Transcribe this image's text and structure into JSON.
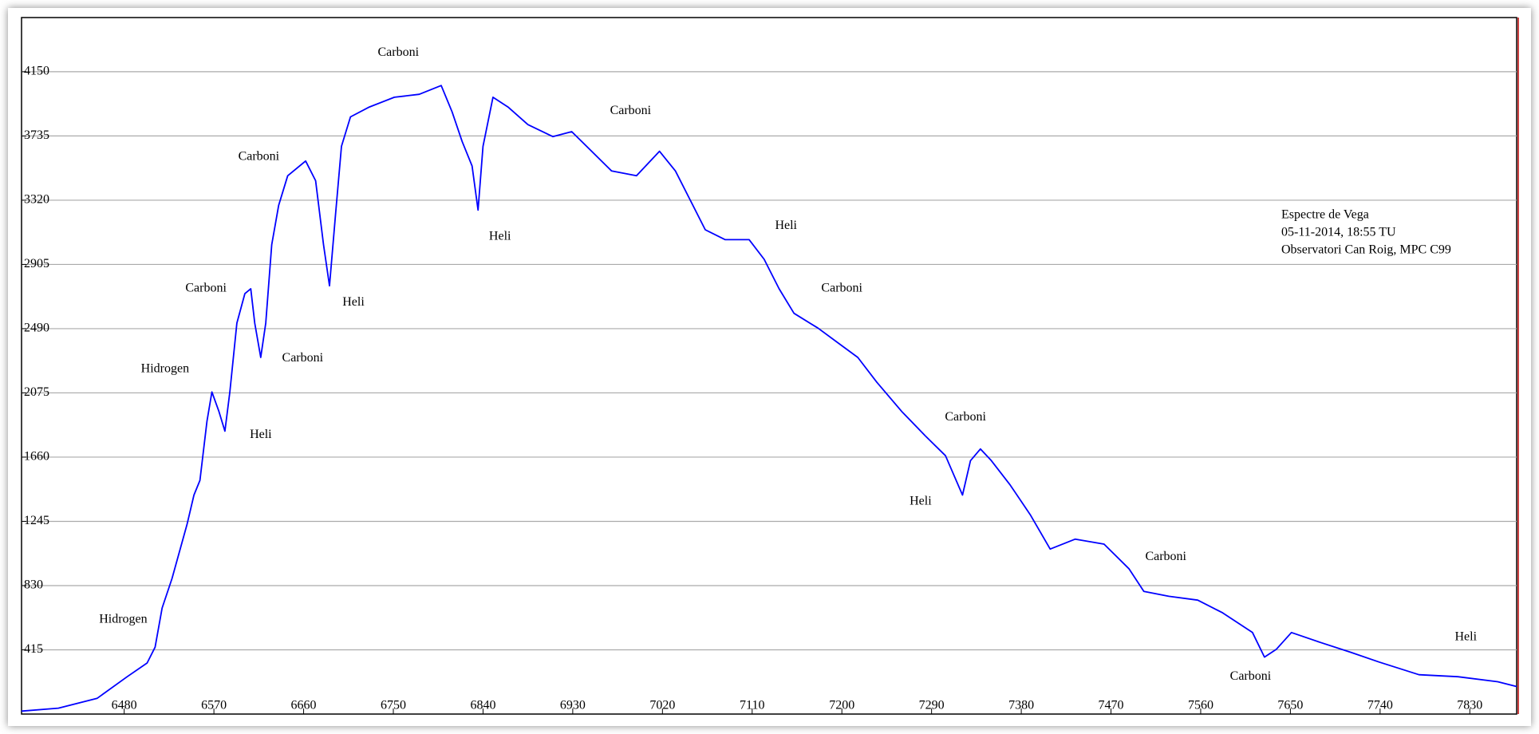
{
  "chart_data": {
    "type": "line",
    "x": [
      6377,
      6414,
      6453,
      6483,
      6503,
      6511,
      6518,
      6528,
      6543,
      6550,
      6556,
      6563,
      6568,
      6575,
      6581,
      6586,
      6593,
      6601,
      6607,
      6611,
      6617,
      6622,
      6628,
      6635,
      6644,
      6662,
      6672,
      6680,
      6686,
      6692,
      6698,
      6707,
      6726,
      6751,
      6776,
      6798,
      6809,
      6819,
      6829,
      6835,
      6840,
      6850,
      6865,
      6885,
      6910,
      6929,
      6949,
      6969,
      6994,
      7017,
      7033,
      7048,
      7063,
      7083,
      7107,
      7122,
      7137,
      7152,
      7176,
      7196,
      7216,
      7235,
      7260,
      7284,
      7304,
      7321,
      7329,
      7339,
      7350,
      7369,
      7389,
      7409,
      7434,
      7463,
      7488,
      7503,
      7528,
      7557,
      7582,
      7612,
      7624,
      7636,
      7651,
      7680,
      7710,
      7739,
      7779,
      7818,
      7858,
      7877
    ],
    "values": [
      19,
      38,
      102,
      241,
      330,
      432,
      685,
      876,
      1225,
      1415,
      1510,
      1891,
      2081,
      1955,
      1828,
      2081,
      2526,
      2716,
      2748,
      2526,
      2304,
      2526,
      3033,
      3287,
      3478,
      3573,
      3446,
      3033,
      2767,
      3224,
      3668,
      3858,
      3922,
      3985,
      4004,
      4061,
      3890,
      3700,
      3541,
      3256,
      3668,
      3985,
      3922,
      3808,
      3731,
      3763,
      3636,
      3509,
      3478,
      3636,
      3509,
      3319,
      3129,
      3065,
      3065,
      2938,
      2748,
      2589,
      2494,
      2399,
      2304,
      2145,
      1955,
      1796,
      1669,
      1415,
      1637,
      1713,
      1637,
      1479,
      1288,
      1066,
      1130,
      1098,
      939,
      793,
      761,
      736,
      654,
      527,
      368,
      419,
      527,
      463,
      400,
      336,
      254,
      241,
      209,
      178
    ],
    "color": "#0000ff",
    "xlim": [
      6377,
      7877
    ],
    "xticks": [
      6480,
      6570,
      6660,
      6750,
      6840,
      6930,
      7020,
      7110,
      7200,
      7290,
      7380,
      7470,
      7560,
      7650,
      7740,
      7830
    ],
    "ylim": [
      0,
      4500
    ],
    "yticks": [
      415,
      830,
      1245,
      1660,
      2075,
      2490,
      2905,
      3320,
      3735,
      4150
    ],
    "grid": true,
    "annotations": [
      {
        "text": "Carboni",
        "x": 6755,
        "y": 4271
      },
      {
        "text": "Carboni",
        "x": 6615,
        "y": 3598
      },
      {
        "text": "Carboni",
        "x": 6562,
        "y": 2748
      },
      {
        "text": "Hidrogen",
        "x": 6521,
        "y": 2227
      },
      {
        "text": "Carboni",
        "x": 6659,
        "y": 2297
      },
      {
        "text": "Heli",
        "x": 6617,
        "y": 1802
      },
      {
        "text": "Heli",
        "x": 6710,
        "y": 2659
      },
      {
        "text": "Heli",
        "x": 6857,
        "y": 3084
      },
      {
        "text": "Carboni",
        "x": 6988,
        "y": 3896
      },
      {
        "text": "Heli",
        "x": 7144,
        "y": 3154
      },
      {
        "text": "Carboni",
        "x": 7200,
        "y": 2748
      },
      {
        "text": "Carboni",
        "x": 7324,
        "y": 1916
      },
      {
        "text": "Heli",
        "x": 7279,
        "y": 1371
      },
      {
        "text": "Carboni",
        "x": 7525,
        "y": 1015
      },
      {
        "text": "Carboni",
        "x": 7610,
        "y": 241
      },
      {
        "text": "Heli",
        "x": 7826,
        "y": 495
      },
      {
        "text": "Hidrogen",
        "x": 6479,
        "y": 609
      }
    ],
    "notes": [
      "Espectre de Vega",
      "05-11-2014, 18:55 TU",
      "Observatori Can Roig, MPC C99"
    ]
  }
}
